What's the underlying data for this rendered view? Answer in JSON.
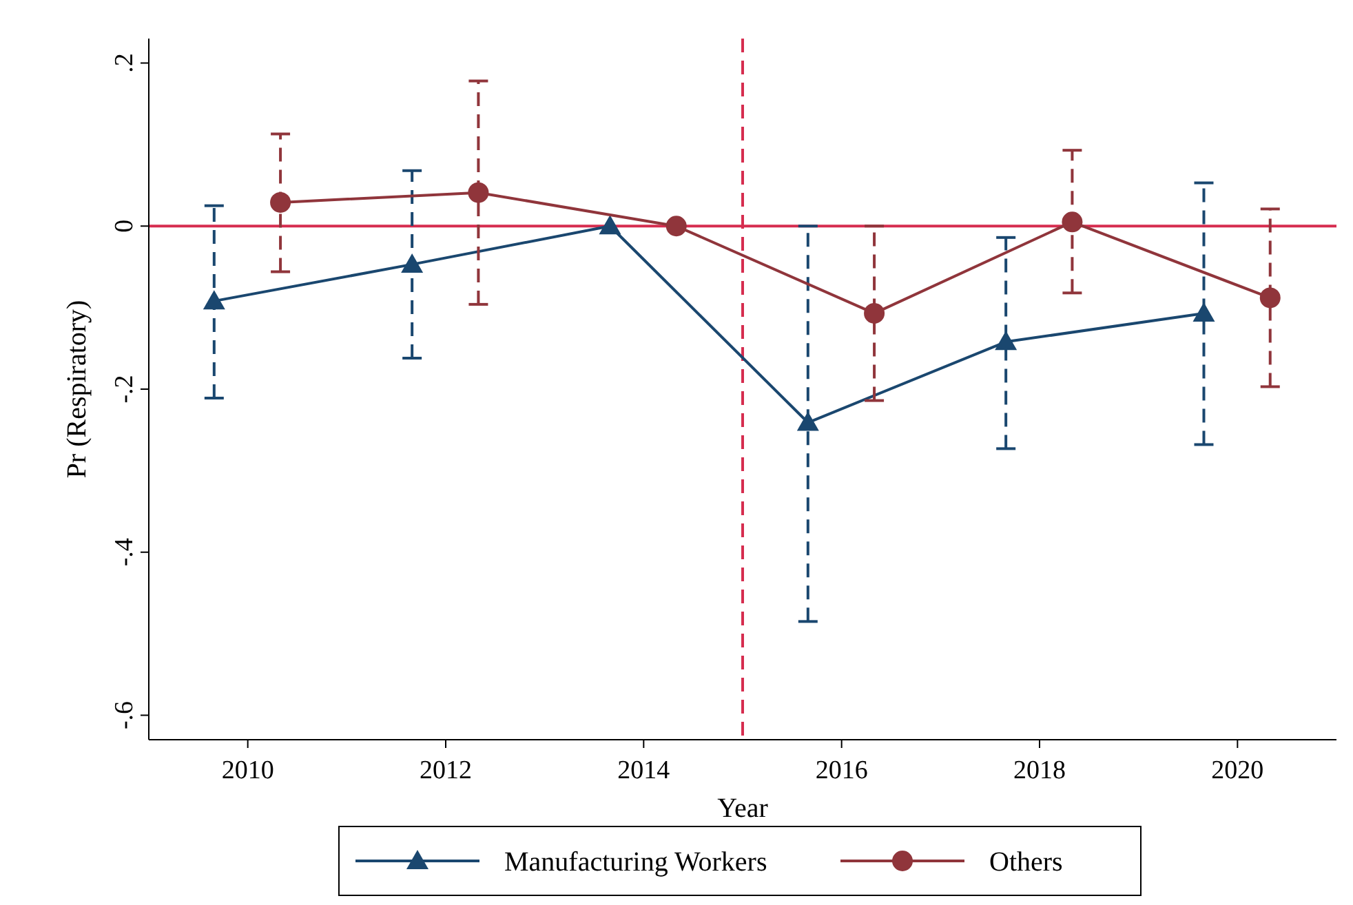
{
  "chart_data": {
    "type": "line",
    "xlabel": "Year",
    "ylabel": "Pr (Respiratory)",
    "xlim": [
      2009,
      2021
    ],
    "xticks": [
      2010,
      2012,
      2014,
      2016,
      2018,
      2020
    ],
    "ylim": [
      -0.63,
      0.23
    ],
    "yticks": [
      {
        "value": 0.2,
        "label": ".2"
      },
      0,
      {
        "value": -0.2,
        "label": "-.2"
      },
      {
        "value": -0.4,
        "label": "-.4"
      },
      {
        "value": -0.6,
        "label": "-.6"
      }
    ],
    "grid": false,
    "legend": "bottom",
    "line_style": "solid",
    "series": [
      {
        "name": "Manufacturing Workers",
        "color": "#1a476f",
        "marker": "triangle",
        "x": [
          2009.66,
          2011.66,
          2013.66,
          2015.66,
          2017.66,
          2019.66
        ],
        "values": [
          -0.092,
          -0.047,
          0,
          -0.241,
          -0.142,
          -0.107
        ],
        "errors": [
          [
            -0.211,
            0.025
          ],
          [
            -0.162,
            0.068
          ],
          null,
          [
            -0.485,
            0
          ],
          [
            -0.273,
            -0.014
          ],
          [
            -0.268,
            0.053
          ]
        ]
      },
      {
        "name": "Others",
        "color": "#90353b",
        "marker": "circle",
        "x": [
          2010.33,
          2012.33,
          2014.33,
          2016.33,
          2018.33,
          2020.33
        ],
        "values": [
          0.029,
          0.041,
          0,
          -0.107,
          0.005,
          -0.088
        ],
        "errors": [
          [
            -0.056,
            0.113
          ],
          [
            -0.096,
            0.178
          ],
          null,
          [
            -0.214,
            0
          ],
          [
            -0.082,
            0.093
          ],
          [
            -0.197,
            0.021
          ]
        ]
      }
    ],
    "ref_lines": [
      {
        "axis": "y",
        "value": 0,
        "color": "#d62d4f",
        "line_style": "solid"
      },
      {
        "axis": "x",
        "value": 2015,
        "color": "#d62d4f",
        "line_style": "dashed"
      }
    ]
  }
}
